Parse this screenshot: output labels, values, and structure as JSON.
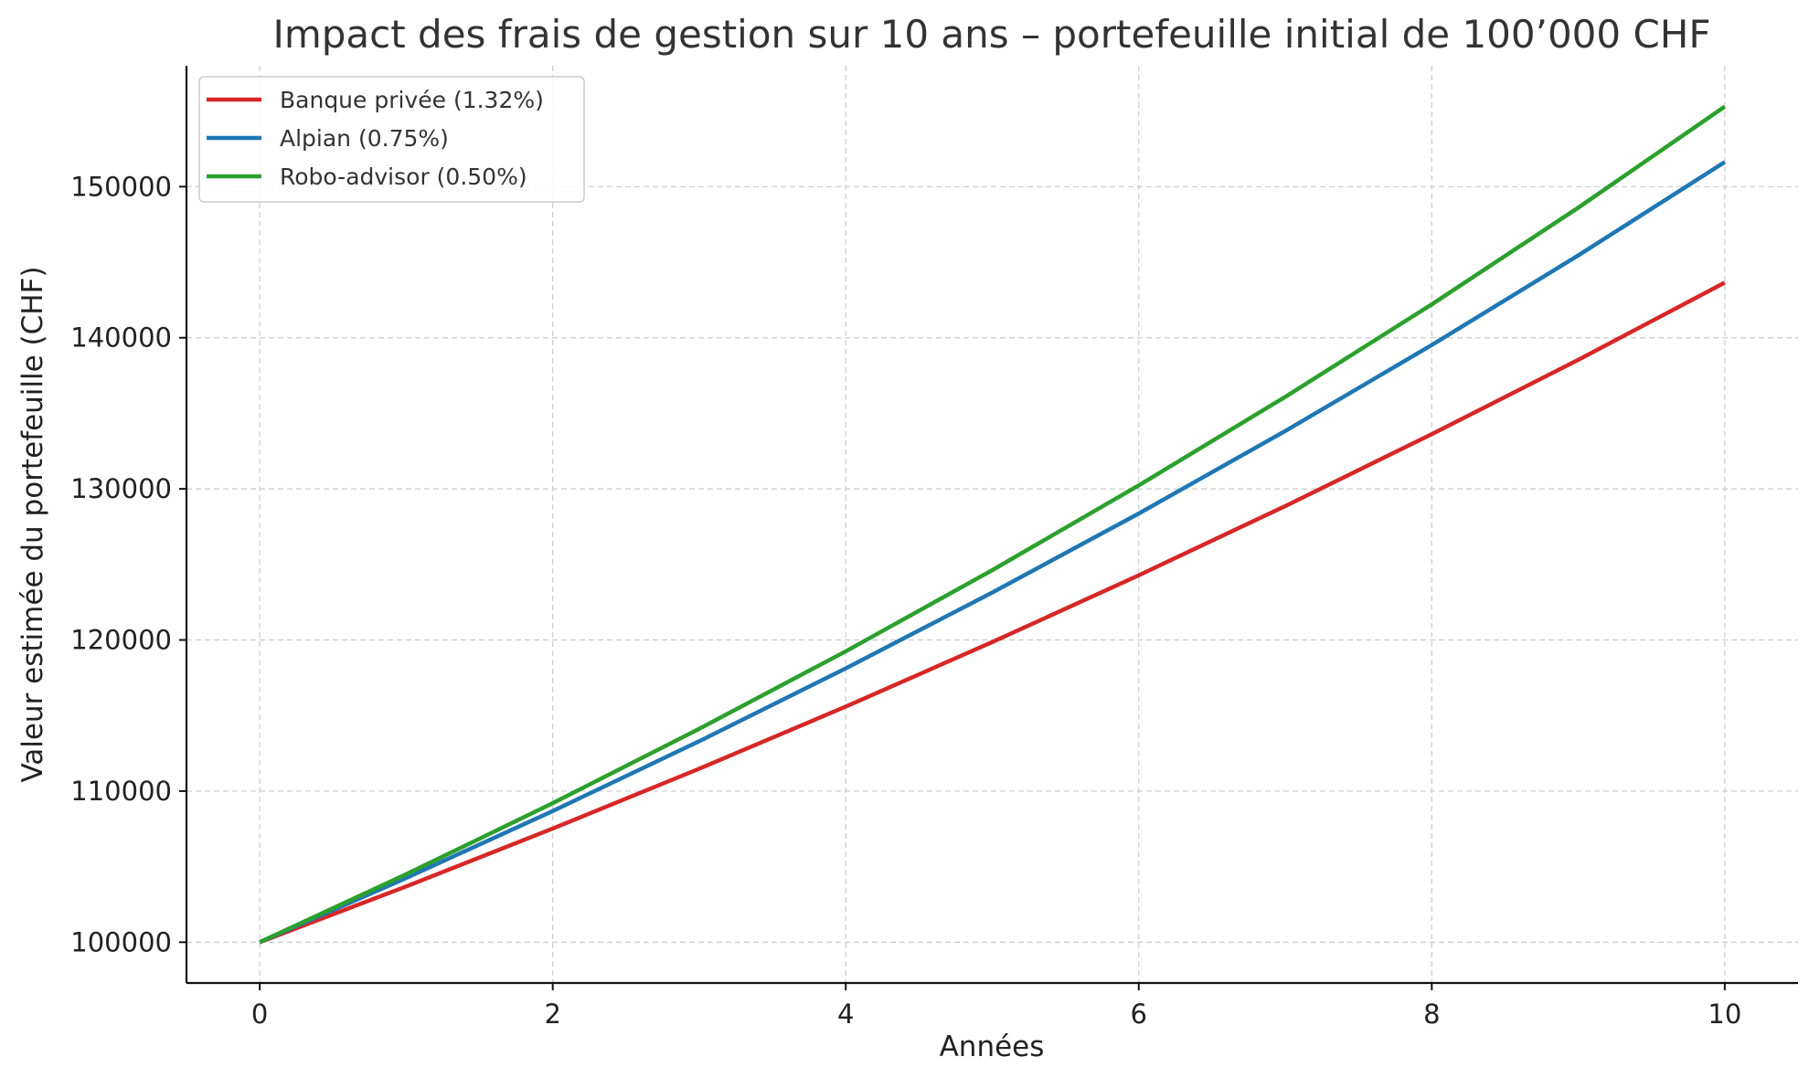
{
  "chart_data": {
    "type": "line",
    "title": "Impact des frais de gestion sur 10 ans – portefeuille initial de 100’000 CHF",
    "xlabel": "Années",
    "ylabel": "Valeur estimée du portefeuille (CHF)",
    "x": [
      0,
      1,
      2,
      3,
      4,
      5,
      6,
      7,
      8,
      9,
      10
    ],
    "xlim": [
      -0.5,
      10.5
    ],
    "ylim": [
      97300,
      158000
    ],
    "xticks": [
      "0",
      "2",
      "4",
      "6",
      "8",
      "10"
    ],
    "yticks": [
      "100000",
      "110000",
      "120000",
      "130000",
      "140000",
      "150000"
    ],
    "grid": true,
    "legend_position": "top-left",
    "series": [
      {
        "name": "Banque privée (1.32%)",
        "color": "#d62728",
        "values": [
          100000,
          103690,
          107520,
          111480,
          115590,
          119860,
          124280,
          128860,
          133620,
          138540,
          143650
        ]
      },
      {
        "name": "Alpian (0.75%)",
        "color": "#1f77b4",
        "values": [
          100000,
          104250,
          108680,
          113300,
          118120,
          123140,
          128370,
          133830,
          139520,
          145450,
          151630
        ]
      },
      {
        "name": "Robo-advisor (0.50%)",
        "color": "#2ca02c",
        "values": [
          100000,
          104500,
          109200,
          114120,
          119250,
          124620,
          130230,
          136090,
          142210,
          148610,
          155300
        ]
      }
    ]
  }
}
